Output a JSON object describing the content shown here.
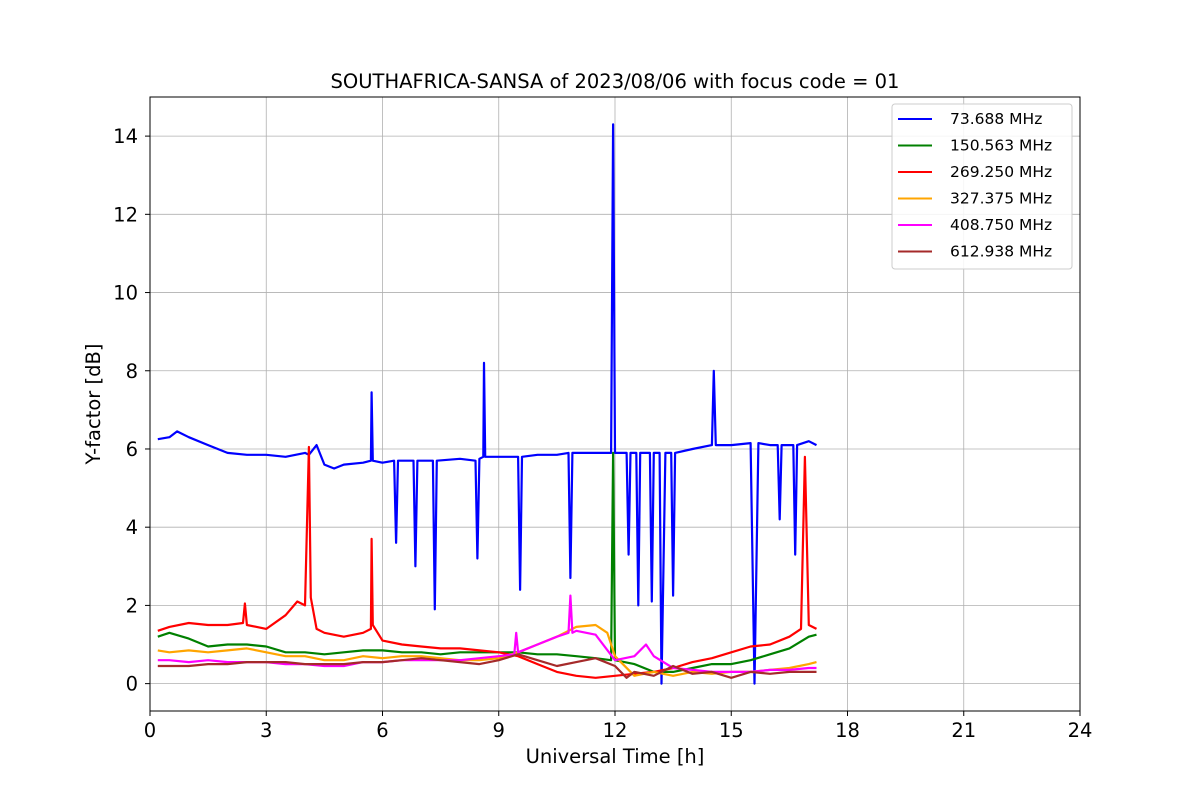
{
  "chart_data": {
    "type": "line",
    "title": "SOUTHAFRICA-SANSA of 2023/08/06 with focus code = 01",
    "xlabel": "Universal Time [h]",
    "ylabel": "Y-factor [dB]",
    "xlim": [
      0,
      24
    ],
    "ylim": [
      -0.7,
      15.0
    ],
    "xticks": [
      0,
      3,
      6,
      9,
      12,
      15,
      18,
      21,
      24
    ],
    "yticks": [
      0,
      2,
      4,
      6,
      8,
      10,
      12,
      14
    ],
    "grid": true,
    "legend_position": "top-right",
    "series": [
      {
        "name": " 73.688 MHz",
        "color": "#0000ff",
        "points": [
          [
            0.2,
            6.25
          ],
          [
            0.5,
            6.3
          ],
          [
            0.7,
            6.45
          ],
          [
            1.0,
            6.3
          ],
          [
            1.5,
            6.1
          ],
          [
            2.0,
            5.9
          ],
          [
            2.5,
            5.85
          ],
          [
            3.0,
            5.85
          ],
          [
            3.5,
            5.8
          ],
          [
            4.0,
            5.9
          ],
          [
            4.1,
            5.85
          ],
          [
            4.3,
            6.1
          ],
          [
            4.5,
            5.6
          ],
          [
            4.75,
            5.5
          ],
          [
            5.0,
            5.6
          ],
          [
            5.5,
            5.65
          ],
          [
            5.7,
            5.7
          ],
          [
            5.72,
            7.45
          ],
          [
            5.75,
            5.7
          ],
          [
            6.0,
            5.65
          ],
          [
            6.3,
            5.7
          ],
          [
            6.35,
            3.6
          ],
          [
            6.4,
            5.7
          ],
          [
            6.8,
            5.7
          ],
          [
            6.85,
            3.0
          ],
          [
            6.9,
            5.7
          ],
          [
            7.3,
            5.7
          ],
          [
            7.35,
            1.9
          ],
          [
            7.4,
            5.7
          ],
          [
            8.0,
            5.75
          ],
          [
            8.4,
            5.7
          ],
          [
            8.45,
            3.2
          ],
          [
            8.5,
            5.75
          ],
          [
            8.6,
            5.8
          ],
          [
            8.62,
            8.2
          ],
          [
            8.65,
            5.8
          ],
          [
            9.0,
            5.8
          ],
          [
            9.5,
            5.8
          ],
          [
            9.55,
            2.4
          ],
          [
            9.6,
            5.8
          ],
          [
            10.0,
            5.85
          ],
          [
            10.5,
            5.85
          ],
          [
            10.8,
            5.9
          ],
          [
            10.85,
            2.7
          ],
          [
            10.9,
            5.9
          ],
          [
            11.5,
            5.9
          ],
          [
            11.9,
            5.9
          ],
          [
            11.95,
            14.3
          ],
          [
            12.0,
            5.9
          ],
          [
            12.3,
            5.9
          ],
          [
            12.35,
            3.3
          ],
          [
            12.4,
            5.9
          ],
          [
            12.55,
            5.9
          ],
          [
            12.6,
            2.0
          ],
          [
            12.65,
            5.9
          ],
          [
            12.9,
            5.9
          ],
          [
            12.95,
            2.1
          ],
          [
            13.0,
            5.9
          ],
          [
            13.15,
            5.9
          ],
          [
            13.2,
            0.0
          ],
          [
            13.3,
            5.9
          ],
          [
            13.45,
            5.9
          ],
          [
            13.5,
            2.25
          ],
          [
            13.55,
            5.9
          ],
          [
            14.0,
            6.0
          ],
          [
            14.5,
            6.1
          ],
          [
            14.55,
            8.0
          ],
          [
            14.6,
            6.1
          ],
          [
            15.0,
            6.1
          ],
          [
            15.5,
            6.15
          ],
          [
            15.6,
            0.0
          ],
          [
            15.7,
            6.15
          ],
          [
            16.0,
            6.1
          ],
          [
            16.2,
            6.1
          ],
          [
            16.25,
            4.2
          ],
          [
            16.3,
            6.1
          ],
          [
            16.6,
            6.1
          ],
          [
            16.65,
            3.3
          ],
          [
            16.7,
            6.1
          ],
          [
            17.0,
            6.2
          ],
          [
            17.2,
            6.1
          ]
        ]
      },
      {
        "name": "150.563 MHz",
        "color": "#008000",
        "points": [
          [
            0.2,
            1.2
          ],
          [
            0.5,
            1.3
          ],
          [
            1.0,
            1.15
          ],
          [
            1.5,
            0.95
          ],
          [
            2.0,
            1.0
          ],
          [
            2.5,
            1.0
          ],
          [
            3.0,
            0.95
          ],
          [
            3.5,
            0.8
          ],
          [
            4.0,
            0.8
          ],
          [
            4.5,
            0.75
          ],
          [
            5.0,
            0.8
          ],
          [
            5.5,
            0.85
          ],
          [
            6.0,
            0.85
          ],
          [
            6.5,
            0.8
          ],
          [
            7.0,
            0.8
          ],
          [
            7.5,
            0.75
          ],
          [
            8.0,
            0.8
          ],
          [
            8.5,
            0.8
          ],
          [
            9.0,
            0.8
          ],
          [
            9.5,
            0.8
          ],
          [
            10.0,
            0.75
          ],
          [
            10.5,
            0.75
          ],
          [
            11.0,
            0.7
          ],
          [
            11.5,
            0.65
          ],
          [
            11.9,
            0.6
          ],
          [
            11.95,
            5.9
          ],
          [
            12.0,
            0.6
          ],
          [
            12.5,
            0.5
          ],
          [
            13.0,
            0.3
          ],
          [
            13.5,
            0.3
          ],
          [
            14.0,
            0.4
          ],
          [
            14.5,
            0.5
          ],
          [
            15.0,
            0.5
          ],
          [
            15.5,
            0.6
          ],
          [
            16.0,
            0.75
          ],
          [
            16.5,
            0.9
          ],
          [
            17.0,
            1.2
          ],
          [
            17.2,
            1.25
          ]
        ]
      },
      {
        "name": "269.250 MHz",
        "color": "#ff0000",
        "points": [
          [
            0.2,
            1.35
          ],
          [
            0.5,
            1.45
          ],
          [
            1.0,
            1.55
          ],
          [
            1.5,
            1.5
          ],
          [
            2.0,
            1.5
          ],
          [
            2.4,
            1.55
          ],
          [
            2.45,
            2.05
          ],
          [
            2.5,
            1.5
          ],
          [
            3.0,
            1.4
          ],
          [
            3.5,
            1.75
          ],
          [
            3.8,
            2.1
          ],
          [
            4.0,
            2.0
          ],
          [
            4.1,
            6.05
          ],
          [
            4.15,
            2.2
          ],
          [
            4.3,
            1.4
          ],
          [
            4.5,
            1.3
          ],
          [
            5.0,
            1.2
          ],
          [
            5.5,
            1.3
          ],
          [
            5.7,
            1.4
          ],
          [
            5.72,
            3.7
          ],
          [
            5.75,
            1.5
          ],
          [
            6.0,
            1.1
          ],
          [
            6.5,
            1.0
          ],
          [
            7.0,
            0.95
          ],
          [
            7.5,
            0.9
          ],
          [
            8.0,
            0.9
          ],
          [
            8.5,
            0.85
          ],
          [
            9.0,
            0.8
          ],
          [
            9.5,
            0.7
          ],
          [
            10.0,
            0.5
          ],
          [
            10.5,
            0.3
          ],
          [
            11.0,
            0.2
          ],
          [
            11.5,
            0.15
          ],
          [
            12.0,
            0.2
          ],
          [
            12.5,
            0.25
          ],
          [
            13.0,
            0.3
          ],
          [
            13.5,
            0.4
          ],
          [
            14.0,
            0.55
          ],
          [
            14.5,
            0.65
          ],
          [
            15.0,
            0.8
          ],
          [
            15.5,
            0.95
          ],
          [
            16.0,
            1.0
          ],
          [
            16.5,
            1.2
          ],
          [
            16.8,
            1.4
          ],
          [
            16.9,
            5.8
          ],
          [
            17.0,
            1.5
          ],
          [
            17.2,
            1.4
          ]
        ]
      },
      {
        "name": "327.375 MHz",
        "color": "#ffa500",
        "points": [
          [
            0.2,
            0.85
          ],
          [
            0.5,
            0.8
          ],
          [
            1.0,
            0.85
          ],
          [
            1.5,
            0.8
          ],
          [
            2.0,
            0.85
          ],
          [
            2.5,
            0.9
          ],
          [
            3.0,
            0.8
          ],
          [
            3.5,
            0.7
          ],
          [
            4.0,
            0.7
          ],
          [
            4.5,
            0.6
          ],
          [
            5.0,
            0.6
          ],
          [
            5.5,
            0.7
          ],
          [
            6.0,
            0.65
          ],
          [
            6.5,
            0.7
          ],
          [
            7.0,
            0.7
          ],
          [
            7.5,
            0.65
          ],
          [
            8.0,
            0.6
          ],
          [
            8.5,
            0.6
          ],
          [
            9.0,
            0.65
          ],
          [
            9.5,
            0.8
          ],
          [
            10.0,
            1.0
          ],
          [
            10.5,
            1.2
          ],
          [
            11.0,
            1.45
          ],
          [
            11.5,
            1.5
          ],
          [
            11.8,
            1.3
          ],
          [
            12.0,
            0.7
          ],
          [
            12.5,
            0.2
          ],
          [
            13.0,
            0.3
          ],
          [
            13.5,
            0.2
          ],
          [
            14.0,
            0.3
          ],
          [
            14.5,
            0.25
          ],
          [
            15.0,
            0.3
          ],
          [
            15.5,
            0.3
          ],
          [
            16.0,
            0.35
          ],
          [
            16.5,
            0.4
          ],
          [
            17.0,
            0.5
          ],
          [
            17.2,
            0.55
          ]
        ]
      },
      {
        "name": "408.750 MHz",
        "color": "#ff00ff",
        "points": [
          [
            0.2,
            0.6
          ],
          [
            0.5,
            0.6
          ],
          [
            1.0,
            0.55
          ],
          [
            1.5,
            0.6
          ],
          [
            2.0,
            0.55
          ],
          [
            2.5,
            0.55
          ],
          [
            3.0,
            0.55
          ],
          [
            3.5,
            0.5
          ],
          [
            4.0,
            0.5
          ],
          [
            4.5,
            0.45
          ],
          [
            5.0,
            0.45
          ],
          [
            5.5,
            0.55
          ],
          [
            6.0,
            0.55
          ],
          [
            6.5,
            0.6
          ],
          [
            7.0,
            0.6
          ],
          [
            7.5,
            0.6
          ],
          [
            8.0,
            0.6
          ],
          [
            8.5,
            0.65
          ],
          [
            9.0,
            0.7
          ],
          [
            9.4,
            0.75
          ],
          [
            9.45,
            1.3
          ],
          [
            9.5,
            0.8
          ],
          [
            10.0,
            1.0
          ],
          [
            10.5,
            1.2
          ],
          [
            10.8,
            1.3
          ],
          [
            10.85,
            2.25
          ],
          [
            10.9,
            1.3
          ],
          [
            11.0,
            1.35
          ],
          [
            11.5,
            1.25
          ],
          [
            12.0,
            0.6
          ],
          [
            12.5,
            0.7
          ],
          [
            12.8,
            1.0
          ],
          [
            13.0,
            0.7
          ],
          [
            13.5,
            0.4
          ],
          [
            14.0,
            0.35
          ],
          [
            14.5,
            0.3
          ],
          [
            15.0,
            0.3
          ],
          [
            15.5,
            0.3
          ],
          [
            16.0,
            0.35
          ],
          [
            16.5,
            0.35
          ],
          [
            17.0,
            0.4
          ],
          [
            17.2,
            0.4
          ]
        ]
      },
      {
        "name": "612.938 MHz",
        "color": "#a52a2a",
        "points": [
          [
            0.2,
            0.45
          ],
          [
            0.5,
            0.45
          ],
          [
            1.0,
            0.45
          ],
          [
            1.5,
            0.5
          ],
          [
            2.0,
            0.5
          ],
          [
            2.5,
            0.55
          ],
          [
            3.0,
            0.55
          ],
          [
            3.5,
            0.55
          ],
          [
            4.0,
            0.5
          ],
          [
            4.5,
            0.5
          ],
          [
            5.0,
            0.5
          ],
          [
            5.5,
            0.55
          ],
          [
            6.0,
            0.55
          ],
          [
            6.5,
            0.6
          ],
          [
            7.0,
            0.65
          ],
          [
            7.5,
            0.6
          ],
          [
            8.0,
            0.55
          ],
          [
            8.5,
            0.5
          ],
          [
            9.0,
            0.6
          ],
          [
            9.5,
            0.75
          ],
          [
            10.0,
            0.6
          ],
          [
            10.5,
            0.45
          ],
          [
            11.0,
            0.55
          ],
          [
            11.5,
            0.65
          ],
          [
            12.0,
            0.45
          ],
          [
            12.3,
            0.15
          ],
          [
            12.5,
            0.3
          ],
          [
            13.0,
            0.2
          ],
          [
            13.5,
            0.45
          ],
          [
            14.0,
            0.25
          ],
          [
            14.5,
            0.3
          ],
          [
            15.0,
            0.15
          ],
          [
            15.5,
            0.3
          ],
          [
            16.0,
            0.25
          ],
          [
            16.5,
            0.3
          ],
          [
            17.0,
            0.3
          ],
          [
            17.2,
            0.3
          ]
        ]
      }
    ]
  }
}
